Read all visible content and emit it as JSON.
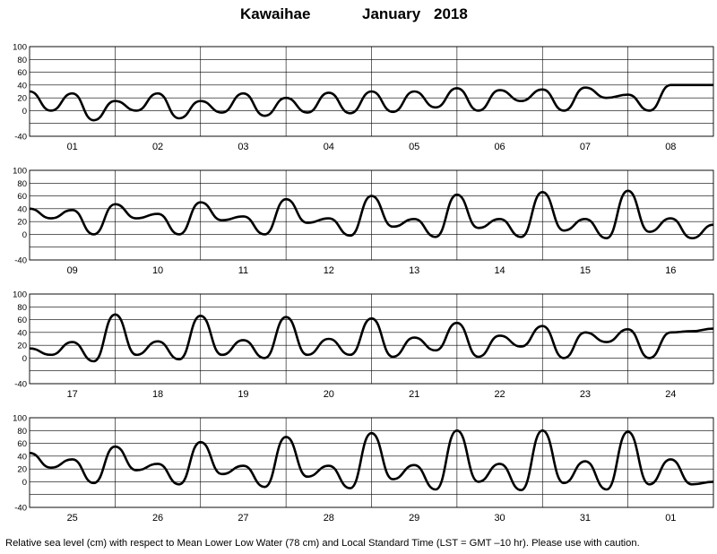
{
  "title": {
    "station": "Kawaihae",
    "month": "January",
    "year": "2018"
  },
  "footer": "Relative sea level (cm) with respect to Mean Lower Low Water (78 cm) and Local Standard Time (LST = GMT –10 hr). Please use with caution.",
  "chart_data": [
    {
      "type": "line",
      "panel": 1,
      "x_ticks": [
        "01",
        "02",
        "03",
        "04",
        "05",
        "06",
        "07",
        "08"
      ],
      "y_ticks": [
        100,
        80,
        60,
        40,
        20,
        0,
        -40
      ],
      "ylim": [
        -40,
        100
      ],
      "xlim": [
        0,
        8
      ],
      "xlabel": "",
      "ylabel": "",
      "grid": true,
      "series": [
        {
          "x": [
            0,
            0.25,
            0.5,
            0.75,
            1.0,
            1.25,
            1.5,
            1.75,
            2.0,
            2.25,
            2.5,
            2.75,
            3.0,
            3.25,
            3.5,
            3.75,
            4.0,
            4.25,
            4.5,
            4.75,
            5.0,
            5.25,
            5.5,
            5.75,
            6.0,
            6.25,
            6.5,
            6.75,
            7.0,
            7.25,
            7.5,
            7.75,
            8.0
          ],
          "values": [
            30,
            0,
            27,
            -15,
            15,
            0,
            27,
            -12,
            15,
            -3,
            27,
            -8,
            20,
            -3,
            28,
            -4,
            30,
            -2,
            30,
            5,
            35,
            0,
            32,
            15,
            33,
            0,
            36,
            20,
            25,
            0,
            40,
            40,
            40
          ]
        }
      ]
    },
    {
      "type": "line",
      "panel": 2,
      "x_ticks": [
        "09",
        "10",
        "11",
        "12",
        "13",
        "14",
        "15",
        "16"
      ],
      "y_ticks": [
        100,
        80,
        60,
        40,
        20,
        0,
        -40
      ],
      "ylim": [
        -40,
        100
      ],
      "xlim": [
        8,
        16
      ],
      "xlabel": "",
      "ylabel": "",
      "grid": true,
      "series": [
        {
          "x": [
            8.0,
            8.25,
            8.5,
            8.75,
            9.0,
            9.25,
            9.5,
            9.75,
            10.0,
            10.25,
            10.5,
            10.75,
            11.0,
            11.25,
            11.5,
            11.75,
            12.0,
            12.25,
            12.5,
            12.75,
            13.0,
            13.25,
            13.5,
            13.75,
            14.0,
            14.25,
            14.5,
            14.75,
            15.0,
            15.25,
            15.5,
            15.75,
            16.0
          ],
          "values": [
            40,
            25,
            38,
            0,
            47,
            25,
            32,
            0,
            50,
            22,
            28,
            0,
            55,
            18,
            25,
            -2,
            60,
            12,
            24,
            -4,
            62,
            10,
            24,
            -4,
            66,
            6,
            24,
            -6,
            68,
            4,
            25,
            -6,
            15
          ]
        }
      ]
    },
    {
      "type": "line",
      "panel": 3,
      "x_ticks": [
        "17",
        "18",
        "19",
        "20",
        "21",
        "22",
        "23",
        "24"
      ],
      "y_ticks": [
        100,
        80,
        60,
        40,
        20,
        0,
        -40
      ],
      "ylim": [
        -40,
        100
      ],
      "xlim": [
        16,
        24
      ],
      "xlabel": "",
      "ylabel": "",
      "grid": true,
      "series": [
        {
          "x": [
            16.0,
            16.25,
            16.5,
            16.75,
            17.0,
            17.25,
            17.5,
            17.75,
            18.0,
            18.25,
            18.5,
            18.75,
            19.0,
            19.25,
            19.5,
            19.75,
            20.0,
            20.25,
            20.5,
            20.75,
            21.0,
            21.25,
            21.5,
            21.75,
            22.0,
            22.25,
            22.5,
            22.75,
            23.0,
            23.25,
            23.5,
            23.75,
            24.0
          ],
          "values": [
            15,
            5,
            25,
            -5,
            68,
            5,
            26,
            -2,
            66,
            5,
            28,
            0,
            64,
            5,
            30,
            5,
            62,
            2,
            32,
            12,
            55,
            2,
            35,
            18,
            50,
            0,
            40,
            25,
            45,
            0,
            40,
            42,
            46
          ]
        }
      ]
    },
    {
      "type": "line",
      "panel": 4,
      "x_ticks": [
        "25",
        "26",
        "27",
        "28",
        "29",
        "30",
        "31",
        "01"
      ],
      "y_ticks": [
        100,
        80,
        60,
        40,
        20,
        0,
        -40
      ],
      "ylim": [
        -40,
        100
      ],
      "xlim": [
        24,
        32
      ],
      "xlabel": "",
      "ylabel": "",
      "grid": true,
      "series": [
        {
          "x": [
            24.0,
            24.25,
            24.5,
            24.75,
            25.0,
            25.25,
            25.5,
            25.75,
            26.0,
            26.25,
            26.5,
            26.75,
            27.0,
            27.25,
            27.5,
            27.75,
            28.0,
            28.25,
            28.5,
            28.75,
            29.0,
            29.25,
            29.5,
            29.75,
            30.0,
            30.25,
            30.5,
            30.75,
            31.0,
            31.25,
            31.5,
            31.75,
            32.0
          ],
          "values": [
            45,
            22,
            35,
            -2,
            55,
            18,
            28,
            -4,
            62,
            12,
            25,
            -8,
            70,
            8,
            25,
            -10,
            76,
            4,
            26,
            -12,
            80,
            0,
            28,
            -13,
            80,
            -2,
            32,
            -12,
            78,
            -4,
            35,
            -4,
            0
          ]
        }
      ]
    }
  ]
}
